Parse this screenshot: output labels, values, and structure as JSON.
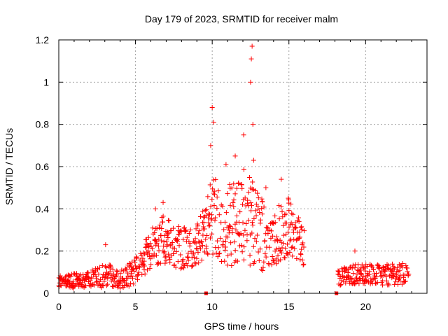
{
  "chart_data": {
    "type": "scatter",
    "title": "Day 179 of 2023, SRMTID for receiver malm",
    "xlabel": "GPS time / hours",
    "ylabel": "SRMTID / TECUs",
    "xlim": [
      0,
      24
    ],
    "ylim": [
      0,
      1.2
    ],
    "xticks": [
      0,
      5,
      10,
      15,
      20
    ],
    "xtick_labels": [
      "0",
      "5",
      "10",
      "15",
      "20"
    ],
    "yticks": [
      0,
      0.2,
      0.4,
      0.6,
      0.8,
      1.0,
      1.2
    ],
    "ytick_labels": [
      "0",
      "0.2",
      "0.4",
      "0.6",
      "0.8",
      "1",
      "1.2"
    ],
    "grid": true,
    "marker": "plus",
    "color": "#ff0000",
    "series": [
      {
        "name": "SRMTID",
        "segments": [
          {
            "x_start": 0.0,
            "x_end": 16.0,
            "step": 0.0333
          },
          {
            "x_start": 18.2,
            "x_end": 22.8,
            "step": 0.0333
          }
        ],
        "envelope": [
          {
            "x": 0.0,
            "base": 0.05,
            "spread": 0.03
          },
          {
            "x": 2.0,
            "base": 0.06,
            "spread": 0.04
          },
          {
            "x": 3.0,
            "base": 0.08,
            "spread": 0.06
          },
          {
            "x": 4.0,
            "base": 0.06,
            "spread": 0.05
          },
          {
            "x": 5.0,
            "base": 0.1,
            "spread": 0.06
          },
          {
            "x": 6.0,
            "base": 0.2,
            "spread": 0.1
          },
          {
            "x": 7.0,
            "base": 0.25,
            "spread": 0.12
          },
          {
            "x": 8.0,
            "base": 0.2,
            "spread": 0.1
          },
          {
            "x": 9.0,
            "base": 0.22,
            "spread": 0.1
          },
          {
            "x": 10.0,
            "base": 0.35,
            "spread": 0.18
          },
          {
            "x": 11.0,
            "base": 0.3,
            "spread": 0.2
          },
          {
            "x": 12.0,
            "base": 0.35,
            "spread": 0.22
          },
          {
            "x": 13.0,
            "base": 0.28,
            "spread": 0.2
          },
          {
            "x": 14.0,
            "base": 0.25,
            "spread": 0.14
          },
          {
            "x": 15.0,
            "base": 0.3,
            "spread": 0.14
          },
          {
            "x": 16.0,
            "base": 0.22,
            "spread": 0.1
          },
          {
            "x": 18.2,
            "base": 0.07,
            "spread": 0.04
          },
          {
            "x": 19.5,
            "base": 0.09,
            "spread": 0.05
          },
          {
            "x": 21.0,
            "base": 0.08,
            "spread": 0.05
          },
          {
            "x": 22.8,
            "base": 0.09,
            "spread": 0.05
          }
        ],
        "peaks": [
          {
            "x": 3.05,
            "y": 0.23
          },
          {
            "x": 6.3,
            "y": 0.4
          },
          {
            "x": 6.8,
            "y": 0.43
          },
          {
            "x": 9.9,
            "y": 0.7
          },
          {
            "x": 10.0,
            "y": 0.88
          },
          {
            "x": 10.1,
            "y": 0.81
          },
          {
            "x": 10.9,
            "y": 0.61
          },
          {
            "x": 11.5,
            "y": 0.65
          },
          {
            "x": 12.05,
            "y": 0.75
          },
          {
            "x": 12.5,
            "y": 1.0
          },
          {
            "x": 12.55,
            "y": 1.11
          },
          {
            "x": 12.6,
            "y": 1.17
          },
          {
            "x": 12.65,
            "y": 0.8
          },
          {
            "x": 12.7,
            "y": 0.63
          },
          {
            "x": 13.5,
            "y": 0.5
          },
          {
            "x": 14.5,
            "y": 0.54
          },
          {
            "x": 19.3,
            "y": 0.2
          }
        ],
        "axis_markers": [
          {
            "x": 9.6,
            "y": 0.0
          },
          {
            "x": 18.1,
            "y": 0.0
          }
        ]
      }
    ]
  }
}
